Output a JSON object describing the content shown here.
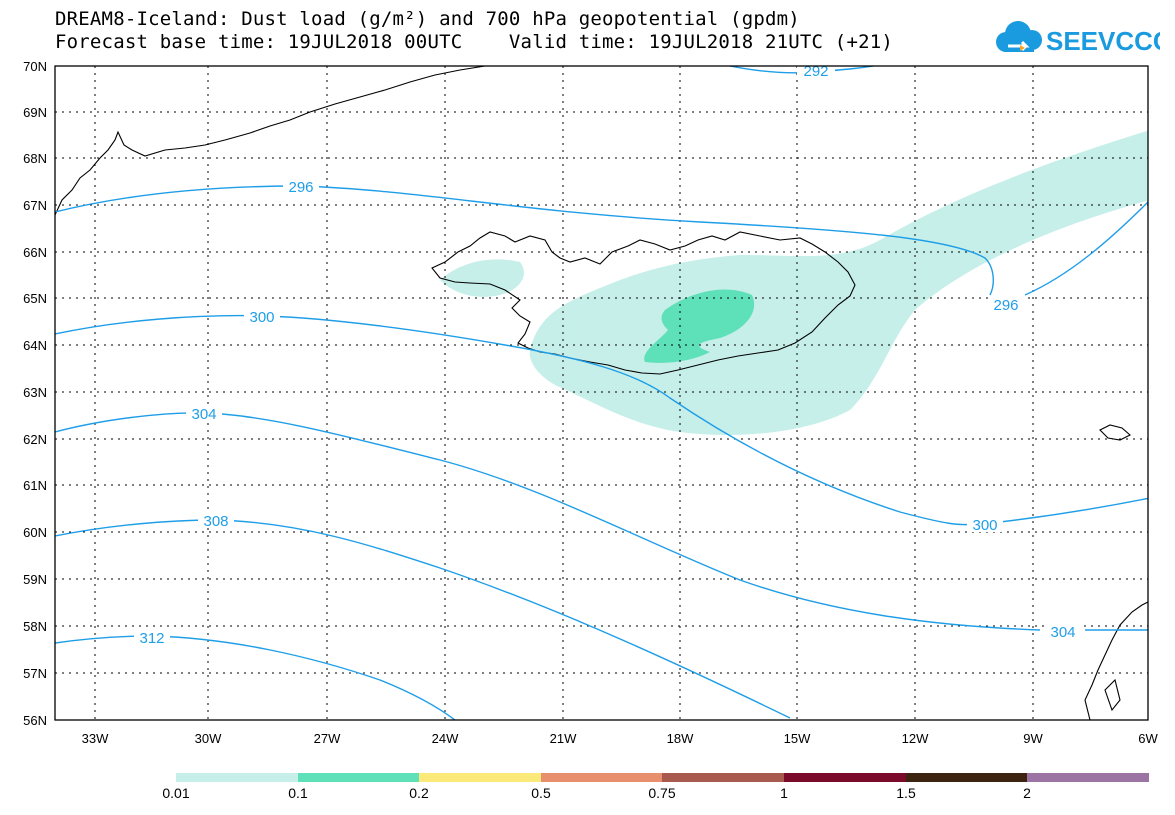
{
  "title": {
    "line1": "DREAM8-Iceland: Dust load (g/m²) and 700 hPa geopotential (gpdm)",
    "line2": "Forecast base time: 19JUL2018 00UTC    Valid time: 19JUL2018 21UTC (+21)"
  },
  "logo": {
    "text": "SEEVCCC",
    "color": "#1a9be0",
    "accent": "#f5a623",
    "icon": "cloud-icon"
  },
  "map": {
    "lat_labels": [
      "70N",
      "69N",
      "68N",
      "67N",
      "66N",
      "65N",
      "64N",
      "63N",
      "62N",
      "61N",
      "60N",
      "59N",
      "58N",
      "57N",
      "56N"
    ],
    "lon_labels": [
      "33W",
      "30W",
      "27W",
      "24W",
      "21W",
      "18W",
      "15W",
      "12W",
      "9W",
      "6W"
    ],
    "contour_color": "#1f9ee8",
    "contour_labels": [
      "292",
      "296",
      "296",
      "300",
      "300",
      "304",
      "304",
      "308",
      "312"
    ]
  },
  "colorbar": {
    "colors": [
      "#c6efea",
      "#5ee0b8",
      "#fbe97a",
      "#e8906e",
      "#a85a4e",
      "#7c0a2a",
      "#3d2410",
      "#9c74a4"
    ],
    "labels": [
      "0.01",
      "0.1",
      "0.2",
      "0.5",
      "0.75",
      "1",
      "1.5",
      "2"
    ]
  }
}
